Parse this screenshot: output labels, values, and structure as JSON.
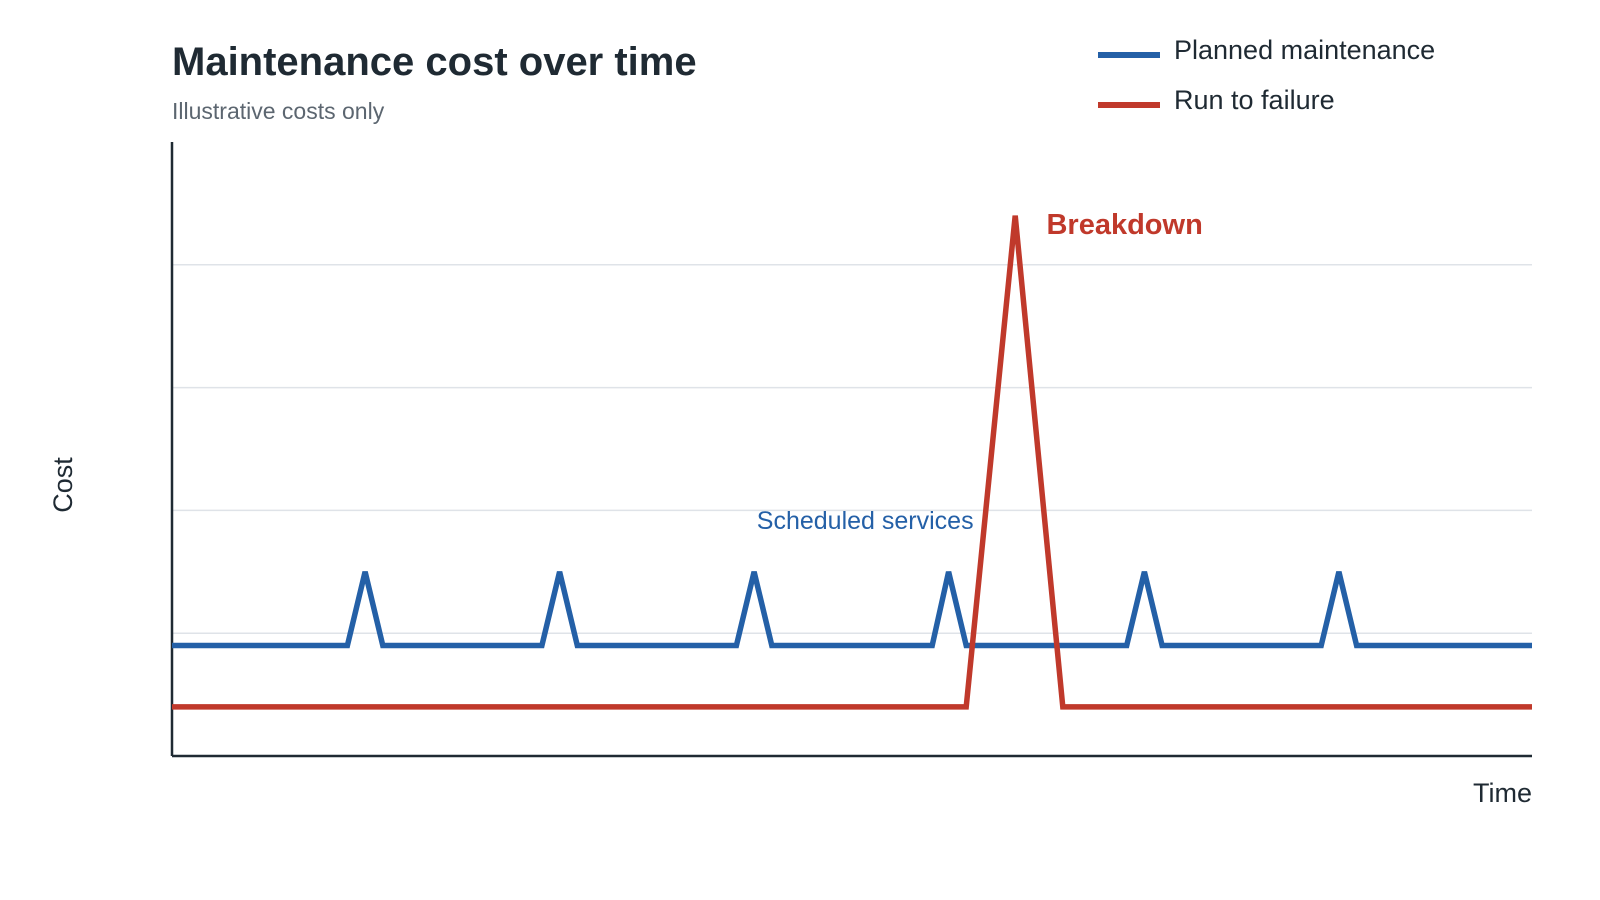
{
  "chart_data": {
    "type": "line",
    "title": "Maintenance cost over time",
    "subtitle": "Illustrative costs only",
    "xlabel": "Time",
    "ylabel": "Cost",
    "xlim": [
      0,
      100
    ],
    "ylim": [
      0,
      100
    ],
    "grid": true,
    "gridlines_y": [
      20,
      40,
      60,
      80
    ],
    "ticks_labeled": false,
    "legend_placement": "top-right",
    "series": [
      {
        "name": "Planned maintenance",
        "color": "#2460a7",
        "x": [
          0,
          12.9,
          14.2,
          15.5,
          27.2,
          28.5,
          29.8,
          41.5,
          42.8,
          44.1,
          55.9,
          57.1,
          58.4,
          70.2,
          71.5,
          72.8,
          84.5,
          85.8,
          87.1,
          100
        ],
        "y": [
          18,
          18,
          30,
          18,
          18,
          30,
          18,
          18,
          30,
          18,
          18,
          30,
          18,
          18,
          30,
          18,
          18,
          30,
          18,
          18
        ]
      },
      {
        "name": "Run to failure",
        "color": "#c0392b",
        "x": [
          0,
          58.4,
          62,
          65.5,
          100
        ],
        "y": [
          8,
          8,
          88,
          8,
          8
        ]
      }
    ],
    "annotations": [
      {
        "text": "Scheduled services",
        "x": 43,
        "y": 37,
        "color": "#2460a7"
      },
      {
        "text": "Breakdown",
        "x": 64.3,
        "y": 85,
        "color": "#c0392b"
      }
    ]
  }
}
